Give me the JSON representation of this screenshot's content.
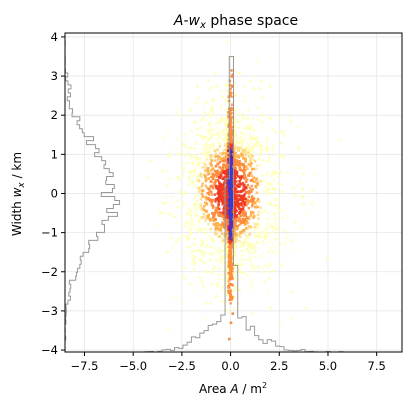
{
  "chart_data": {
    "type": "heatmap",
    "title_main": "A-w",
    "title_sub": "x",
    "title_rest": " phase space",
    "xlabel_main": "Area   ",
    "xlabel_var": "A",
    "xlabel_unit": " / m",
    "xlabel_sup": "2",
    "ylabel_main": "Width   ",
    "ylabel_var": "w",
    "ylabel_sub": "x",
    "ylabel_unit": " / km",
    "xlim": [
      -8.5,
      8.8
    ],
    "ylim": [
      -4.05,
      4.1
    ],
    "xticks": [
      -7.5,
      -5.0,
      -2.5,
      0.0,
      2.5,
      5.0,
      7.5
    ],
    "xtick_labels": [
      "−7.5",
      "−5.0",
      "−2.5",
      "0.0",
      "2.5",
      "5.0",
      "7.5"
    ],
    "yticks": [
      -4,
      -3,
      -2,
      -1,
      0,
      1,
      2,
      3,
      4
    ],
    "ytick_labels": [
      "−4",
      "−3",
      "−2",
      "−1",
      "0",
      "1",
      "2",
      "3",
      "4"
    ],
    "grid": true,
    "colormap": [
      "#ffffb2",
      "#fed976",
      "#feb24c",
      "#fd8d3c",
      "#f03b20",
      "#bd0026",
      "#7a1fa2",
      "#3b3bd1"
    ],
    "density": {
      "x_spread": 1.6,
      "x_core_spread": 0.12,
      "y_spread": 1.1,
      "samples": 6000
    },
    "marginal_x": {
      "description": "histogram of A along bottom edge",
      "peak_value": 3.5,
      "color": "#999999"
    },
    "marginal_y": {
      "description": "histogram of w_x along left edge",
      "peak_value": -5.7,
      "color": "#999999"
    }
  }
}
